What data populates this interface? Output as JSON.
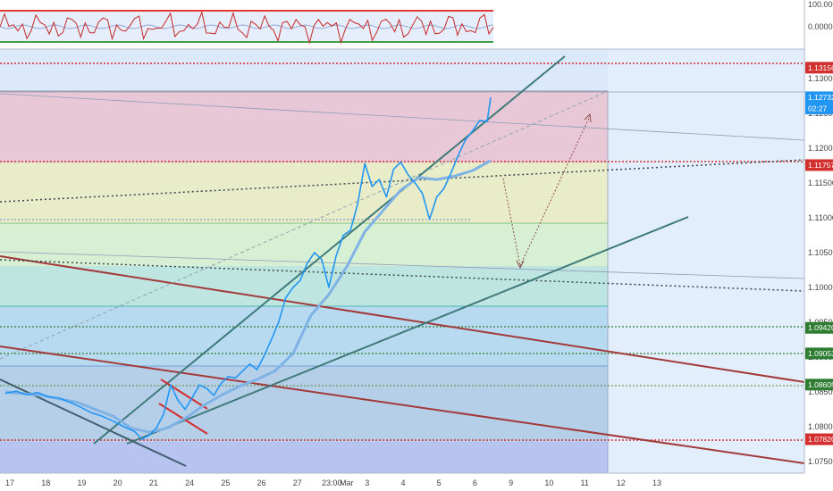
{
  "chart_data": {
    "type": "line",
    "title": "",
    "indicator": {
      "ticks": [
        {
          "label": "100.00000",
          "value": 100
        },
        {
          "label": "0.00000",
          "value": 0
        }
      ],
      "upper_level": 80,
      "lower_level": -80
    },
    "price_ticks": [
      {
        "label": "1.13000",
        "value": 1.13
      },
      {
        "label": "1.12500",
        "value": 1.125
      },
      {
        "label": "1.12000",
        "value": 1.12
      },
      {
        "label": "1.11500",
        "value": 1.115
      },
      {
        "label": "1.11000",
        "value": 1.11
      },
      {
        "label": "1.10500",
        "value": 1.105
      },
      {
        "label": "1.10000",
        "value": 1.1
      },
      {
        "label": "1.09500",
        "value": 1.095
      },
      {
        "label": "1.09000",
        "value": 1.09
      },
      {
        "label": "1.08500",
        "value": 1.085
      },
      {
        "label": "1.08000",
        "value": 1.08
      },
      {
        "label": "1.07500",
        "value": 1.075
      }
    ],
    "price_labels": [
      {
        "label": "1.13156",
        "value": 1.13156,
        "color": "#d32f2f"
      },
      {
        "label": "1.12732",
        "value": 1.12732,
        "color": "#2196f3"
      },
      {
        "label": "02:27",
        "value": 1.1257,
        "color": "#2196f3"
      },
      {
        "label": "1.11757",
        "value": 1.11757,
        "color": "#d32f2f"
      },
      {
        "label": "1.09420",
        "value": 1.0942,
        "color": "#2e7d32"
      },
      {
        "label": "1.09053",
        "value": 1.09053,
        "color": "#2e7d32"
      },
      {
        "label": "1.08605",
        "value": 1.08605,
        "color": "#2e7d32"
      },
      {
        "label": "1.07820",
        "value": 1.0782,
        "color": "#d32f2f"
      }
    ],
    "x_ticks": [
      {
        "label": "17",
        "x": 0
      },
      {
        "label": "18",
        "x": 1
      },
      {
        "label": "19",
        "x": 2
      },
      {
        "label": "20",
        "x": 3
      },
      {
        "label": "21",
        "x": 4
      },
      {
        "label": "24",
        "x": 5
      },
      {
        "label": "25",
        "x": 6
      },
      {
        "label": "26",
        "x": 7
      },
      {
        "label": "27",
        "x": 8
      },
      {
        "label": "23:00",
        "x": 8.8
      },
      {
        "label": "Mar",
        "x": 9.3
      },
      {
        "label": "3",
        "x": 10
      },
      {
        "label": "4",
        "x": 11
      },
      {
        "label": "5",
        "x": 12
      },
      {
        "label": "6",
        "x": 13
      },
      {
        "label": "9",
        "x": 14
      },
      {
        "label": "10",
        "x": 15
      },
      {
        "label": "11",
        "x": 16
      },
      {
        "label": "12",
        "x": 17
      },
      {
        "label": "13",
        "x": 18
      }
    ],
    "series": [
      {
        "color": "#2196f3",
        "x": [
          0,
          0.3,
          0.6,
          0.9,
          1.2,
          1.5,
          1.8,
          2.1,
          2.4,
          2.7,
          3.0,
          3.3,
          3.6,
          3.8,
          4.0,
          4.2,
          4.4,
          4.6,
          4.8,
          5.0,
          5.2,
          5.4,
          5.6,
          5.8,
          6.0,
          6.2,
          6.4,
          6.6,
          6.8,
          7.0,
          7.2,
          7.4,
          7.6,
          7.8,
          8.0,
          8.2,
          8.4,
          8.6,
          8.8,
          9.0,
          9.2,
          9.4,
          9.6,
          9.8,
          10.0,
          10.2,
          10.4,
          10.6,
          10.8,
          11.0,
          11.2,
          11.4,
          11.6,
          11.8,
          12.0,
          12.2,
          12.4,
          12.6,
          12.8,
          13.0,
          13.2,
          13.4,
          13.5
        ],
        "y": [
          1.0848,
          1.0851,
          1.0846,
          1.0849,
          1.0843,
          1.0841,
          1.0835,
          1.0828,
          1.082,
          1.0815,
          1.0808,
          1.08,
          1.0793,
          1.0782,
          1.0788,
          1.0798,
          1.0818,
          1.086,
          1.0838,
          1.0825,
          1.0842,
          1.086,
          1.0855,
          1.0845,
          1.0862,
          1.0872,
          1.087,
          1.088,
          1.089,
          1.0882,
          1.0902,
          1.0925,
          1.095,
          1.0985,
          1.1,
          1.101,
          1.1035,
          1.105,
          1.104,
          1.1,
          1.1045,
          1.1075,
          1.1082,
          1.112,
          1.1178,
          1.1145,
          1.1155,
          1.113,
          1.117,
          1.118,
          1.1162,
          1.115,
          1.1135,
          1.1098,
          1.113,
          1.1142,
          1.1165,
          1.119,
          1.1212,
          1.1225,
          1.124,
          1.1238,
          1.1273
        ]
      },
      {
        "color": "#7fb2e5",
        "x": [
          0,
          1,
          2,
          3,
          3.5,
          4,
          4.5,
          5,
          5.5,
          6,
          6.5,
          7,
          7.5,
          8,
          8.5,
          9,
          9.5,
          10,
          10.5,
          11,
          11.5,
          12,
          12.5,
          13,
          13.5
        ],
        "y": [
          1.085,
          1.0845,
          1.0835,
          1.0815,
          1.0798,
          1.0792,
          1.0798,
          1.0812,
          1.083,
          1.0845,
          1.0858,
          1.0868,
          1.088,
          1.0905,
          1.096,
          1.099,
          1.103,
          1.108,
          1.111,
          1.114,
          1.1158,
          1.1155,
          1.116,
          1.1168,
          1.1182
        ]
      }
    ]
  }
}
